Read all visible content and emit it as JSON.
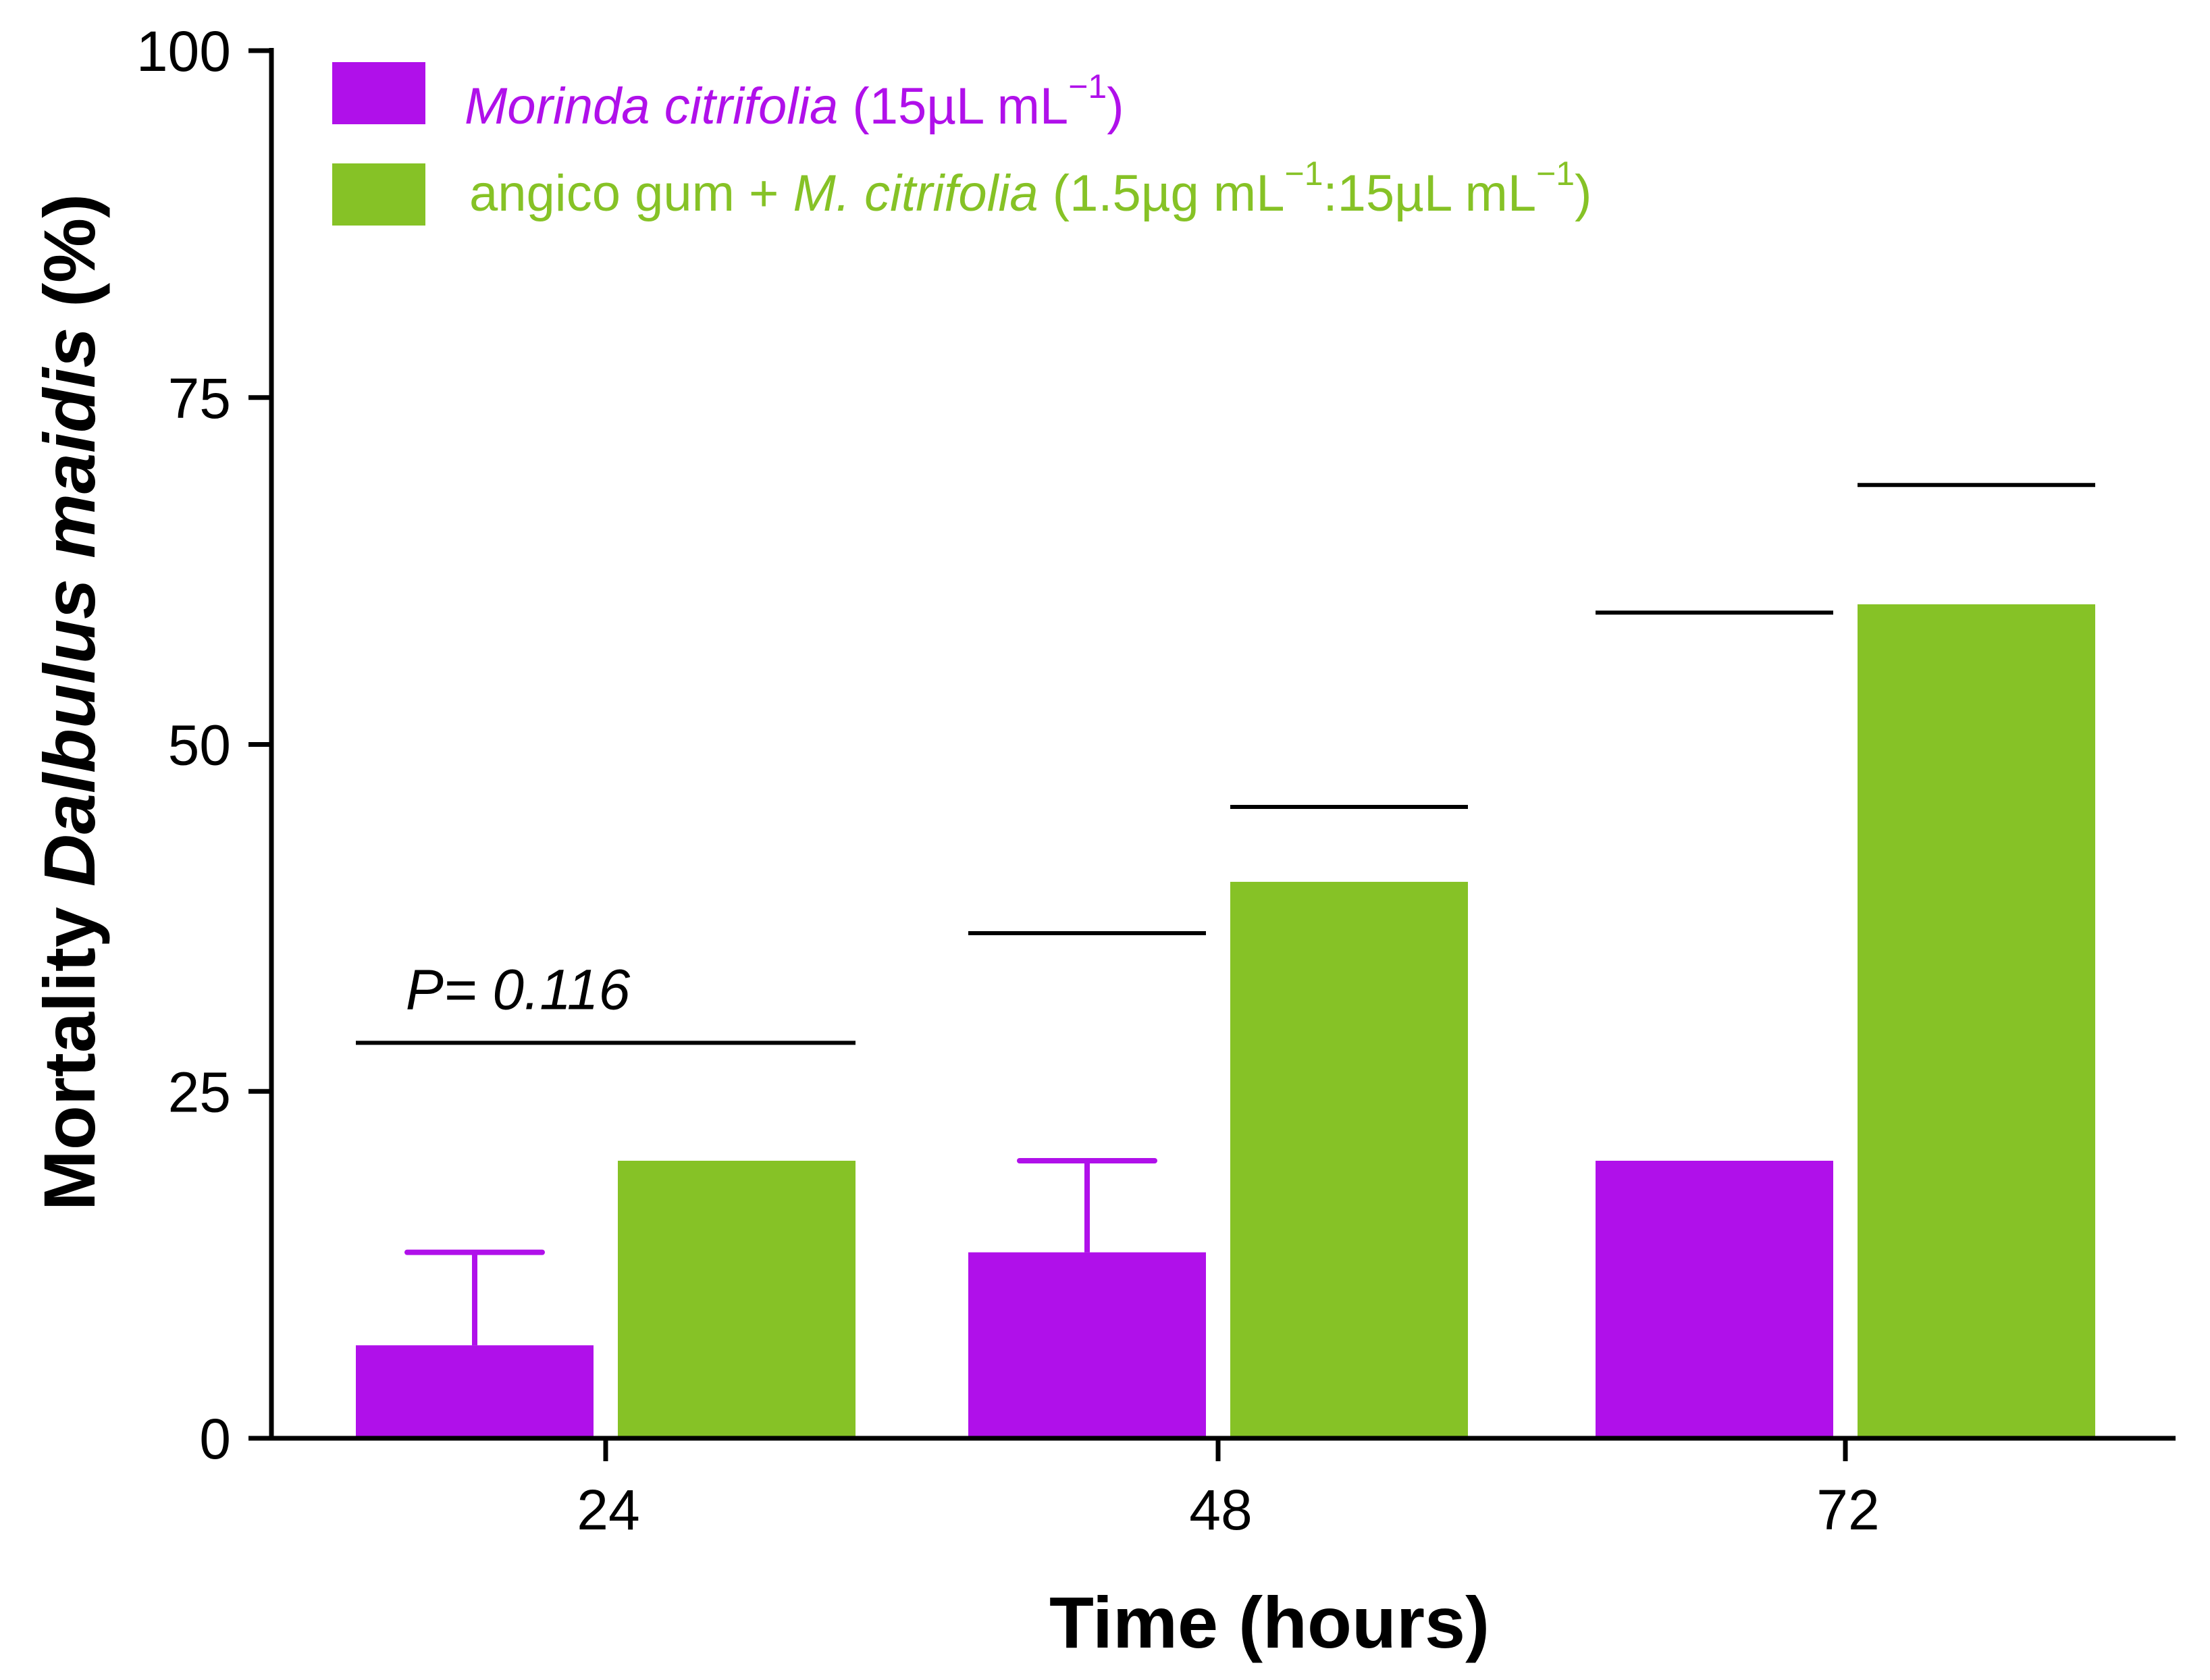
{
  "chart_data": {
    "type": "bar",
    "categories": [
      "24",
      "48",
      "72"
    ],
    "series": [
      {
        "name": "Morinda citrifolia (15µL mL−1)",
        "color": "#b010ea",
        "values": [
          6.7,
          13.4,
          20
        ],
        "error_upper": [
          13.4,
          20,
          null
        ],
        "legend": {
          "italic": "Morinda citrifolia",
          "text": " (15µL mL",
          "sup": "−1",
          "tail": ")"
        }
      },
      {
        "name": "angico gum + M. citrifolia (1.5µg mL−1:15µL mL−1)",
        "color": "#86c226",
        "values": [
          20,
          40.1,
          60.1
        ],
        "error_upper": [
          null,
          null,
          null
        ],
        "legend": {
          "text1": "angico gum + ",
          "italic": "M. citrifolia",
          "text2": " (1.5µg mL",
          "sup1": "−1",
          "text3": ":15µL mL",
          "sup2": "−1",
          "tail": ")"
        }
      }
    ],
    "significance_lines": [
      {
        "category": "24",
        "span": "both",
        "value": 28.5,
        "label": "P= 0.116"
      },
      {
        "category": "48",
        "series": 0,
        "value": 36.4,
        "label": ""
      },
      {
        "category": "48",
        "series": 1,
        "value": 45.5,
        "label": ""
      },
      {
        "category": "72",
        "series": 0,
        "value": 59.5,
        "label": ""
      },
      {
        "category": "72",
        "series": 1,
        "value": 68.7,
        "label": ""
      }
    ],
    "ylim": [
      0,
      100
    ],
    "yticks": [
      0,
      25,
      50,
      75,
      100
    ],
    "xlabel": "Time (hours)",
    "ylabel": {
      "before": "Mortality ",
      "italic": "Dalbulus maidis",
      "after": " (%)"
    },
    "legend_position": "top-left",
    "grid": false
  }
}
